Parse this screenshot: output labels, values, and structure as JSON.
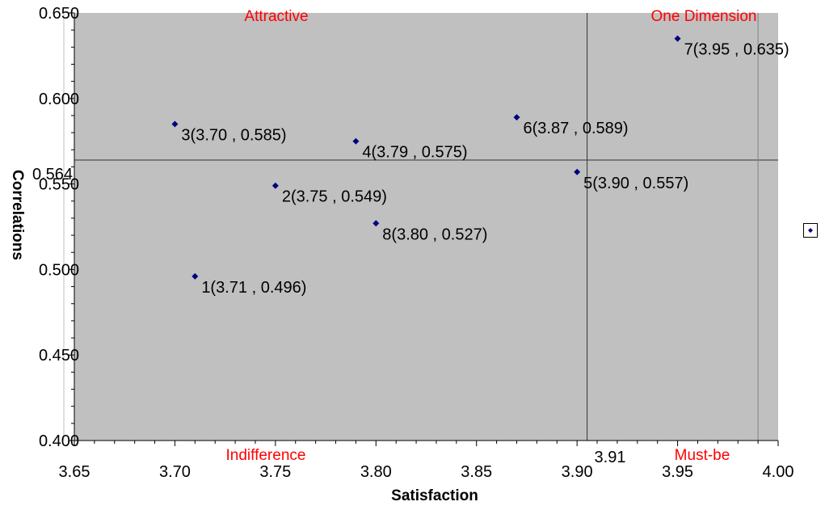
{
  "chart_data": {
    "type": "scatter",
    "xlabel": "Satisfaction",
    "ylabel": "Correlations",
    "xlim": [
      3.65,
      4.0
    ],
    "ylim": [
      0.4,
      0.65
    ],
    "x_ticks": [
      "3.65",
      "3.70",
      "3.75",
      "3.80",
      "3.85",
      "3.90",
      "3.95",
      "4.00"
    ],
    "y_ticks": [
      "0.400",
      "0.450",
      "0.500",
      "0.550",
      "0.600",
      "0.650"
    ],
    "grid": false,
    "plot_background": "#c0c0c0",
    "point_color": "#000080",
    "quadrant_label_color": "#ff0000",
    "reference_lines": {
      "x": 3.905,
      "x_label": "3.91",
      "y": 0.564,
      "y_label": "0.564"
    },
    "vertical_line_right": 3.99,
    "quadrant_labels": {
      "top_left": "Attractive",
      "top_right": "One Dimension",
      "bottom_left": "Indifference",
      "bottom_right": "Must-be"
    },
    "points": [
      {
        "x": 3.71,
        "y": 0.496,
        "label": "1(3.71 , 0.496)"
      },
      {
        "x": 3.75,
        "y": 0.549,
        "label": "2(3.75 , 0.549)"
      },
      {
        "x": 3.7,
        "y": 0.585,
        "label": "3(3.70 , 0.585)"
      },
      {
        "x": 3.79,
        "y": 0.575,
        "label": "4(3.79 , 0.575)"
      },
      {
        "x": 3.9,
        "y": 0.557,
        "label": "5(3.90 , 0.557)"
      },
      {
        "x": 3.87,
        "y": 0.589,
        "label": "6(3.87 , 0.589)"
      },
      {
        "x": 3.95,
        "y": 0.635,
        "label": "7(3.95 , 0.635)"
      },
      {
        "x": 3.8,
        "y": 0.527,
        "label": "8(3.80 , 0.527)"
      }
    ],
    "legend": {
      "placement": "right",
      "marker": "diamond",
      "text": ""
    }
  }
}
